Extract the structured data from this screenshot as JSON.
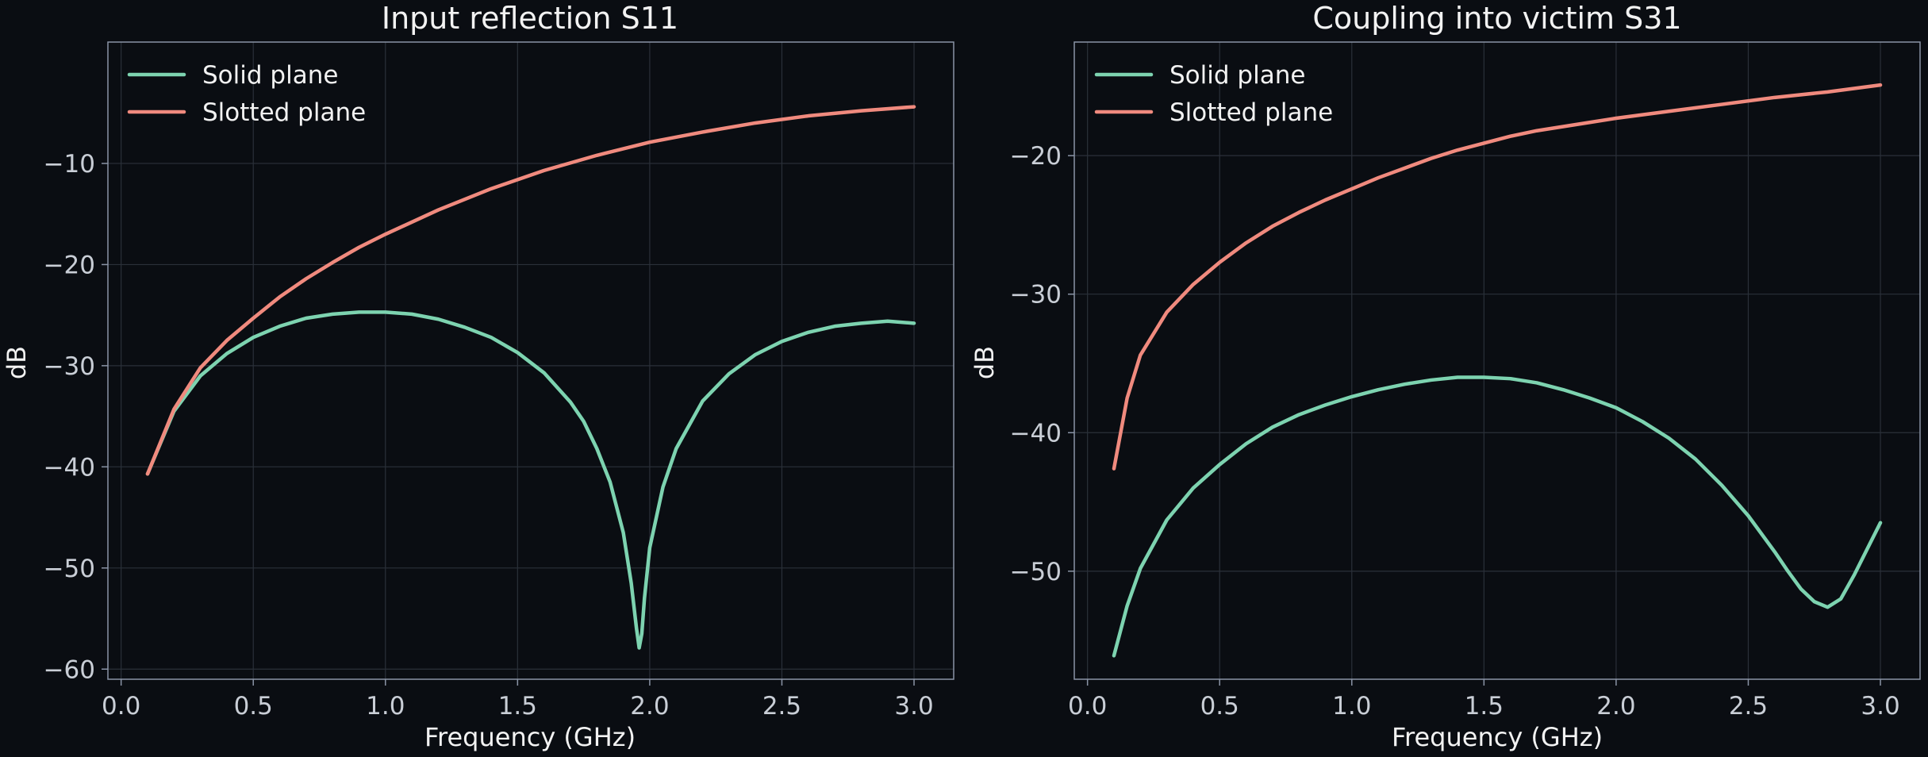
{
  "chart_data": [
    {
      "type": "line",
      "title": "Input reflection S11",
      "xlabel": "Frequency (GHz)",
      "ylabel": "dB",
      "xlim": [
        -0.05,
        3.15
      ],
      "ylim": [
        -61,
        2
      ],
      "xticks": [
        0.0,
        0.5,
        1.0,
        1.5,
        2.0,
        2.5,
        3.0
      ],
      "xtick_labels": [
        "0.0",
        "0.5",
        "1.0",
        "1.5",
        "2.0",
        "2.5",
        "3.0"
      ],
      "yticks": [
        -60,
        -50,
        -40,
        -30,
        -20,
        -10
      ],
      "ytick_labels": [
        "−60",
        "−50",
        "−40",
        "−30",
        "−20",
        "−10"
      ],
      "grid": true,
      "legend_position": "top-left",
      "series": [
        {
          "name": "Solid plane",
          "color": "#7dd3b0",
          "x": [
            0.1,
            0.2,
            0.3,
            0.4,
            0.5,
            0.6,
            0.7,
            0.8,
            0.9,
            1.0,
            1.1,
            1.2,
            1.3,
            1.4,
            1.5,
            1.6,
            1.7,
            1.75,
            1.8,
            1.85,
            1.9,
            1.93,
            1.95,
            1.96,
            1.97,
            1.98,
            2.0,
            2.05,
            2.1,
            2.2,
            2.3,
            2.4,
            2.5,
            2.6,
            2.7,
            2.8,
            2.9,
            3.0
          ],
          "y": [
            -40.7,
            -34.5,
            -31.0,
            -28.8,
            -27.2,
            -26.1,
            -25.3,
            -24.9,
            -24.7,
            -24.7,
            -24.9,
            -25.4,
            -26.2,
            -27.2,
            -28.7,
            -30.7,
            -33.6,
            -35.5,
            -38.2,
            -41.5,
            -46.5,
            -51.5,
            -56.0,
            -57.9,
            -56.5,
            -53.0,
            -48.0,
            -42.0,
            -38.2,
            -33.5,
            -30.8,
            -28.9,
            -27.6,
            -26.7,
            -26.1,
            -25.8,
            -25.6,
            -25.8
          ]
        },
        {
          "name": "Slotted plane",
          "color": "#f08a7e",
          "x": [
            0.1,
            0.2,
            0.3,
            0.4,
            0.5,
            0.6,
            0.7,
            0.8,
            0.9,
            1.0,
            1.2,
            1.4,
            1.6,
            1.8,
            2.0,
            2.2,
            2.4,
            2.6,
            2.8,
            3.0
          ],
          "y": [
            -40.7,
            -34.3,
            -30.2,
            -27.5,
            -25.3,
            -23.2,
            -21.4,
            -19.8,
            -18.3,
            -17.0,
            -14.6,
            -12.5,
            -10.7,
            -9.2,
            -7.9,
            -6.9,
            -6.0,
            -5.3,
            -4.8,
            -4.4
          ]
        }
      ]
    },
    {
      "type": "line",
      "title": "Coupling into victim S31",
      "xlabel": "Frequency (GHz)",
      "ylabel": "dB",
      "xlim": [
        -0.05,
        3.15
      ],
      "ylim": [
        -57.8,
        -11.8
      ],
      "xticks": [
        0.0,
        0.5,
        1.0,
        1.5,
        2.0,
        2.5,
        3.0
      ],
      "xtick_labels": [
        "0.0",
        "0.5",
        "1.0",
        "1.5",
        "2.0",
        "2.5",
        "3.0"
      ],
      "yticks": [
        -50,
        -40,
        -30,
        -20
      ],
      "ytick_labels": [
        "−50",
        "−40",
        "−30",
        "−20"
      ],
      "grid": true,
      "legend_position": "top-left",
      "series": [
        {
          "name": "Solid plane",
          "color": "#7dd3b0",
          "x": [
            0.1,
            0.15,
            0.2,
            0.3,
            0.4,
            0.5,
            0.6,
            0.7,
            0.8,
            0.9,
            1.0,
            1.1,
            1.2,
            1.3,
            1.4,
            1.5,
            1.6,
            1.7,
            1.8,
            1.9,
            2.0,
            2.1,
            2.2,
            2.3,
            2.4,
            2.5,
            2.6,
            2.65,
            2.7,
            2.75,
            2.8,
            2.85,
            2.9,
            2.95,
            3.0
          ],
          "y": [
            -56.1,
            -52.5,
            -49.8,
            -46.3,
            -44.0,
            -42.3,
            -40.8,
            -39.6,
            -38.7,
            -38.0,
            -37.4,
            -36.9,
            -36.5,
            -36.2,
            -36.0,
            -36.0,
            -36.1,
            -36.4,
            -36.9,
            -37.5,
            -38.2,
            -39.2,
            -40.4,
            -41.9,
            -43.8,
            -46.0,
            -48.6,
            -50.0,
            -51.3,
            -52.2,
            -52.6,
            -52.0,
            -50.3,
            -48.4,
            -46.5
          ]
        },
        {
          "name": "Slotted plane",
          "color": "#f08a7e",
          "x": [
            0.1,
            0.15,
            0.2,
            0.3,
            0.4,
            0.5,
            0.6,
            0.7,
            0.8,
            0.9,
            1.0,
            1.1,
            1.2,
            1.3,
            1.4,
            1.5,
            1.6,
            1.7,
            1.8,
            1.9,
            2.0,
            2.2,
            2.4,
            2.6,
            2.8,
            3.0
          ],
          "y": [
            -42.6,
            -37.5,
            -34.4,
            -31.3,
            -29.3,
            -27.7,
            -26.3,
            -25.1,
            -24.1,
            -23.2,
            -22.4,
            -21.6,
            -20.9,
            -20.2,
            -19.6,
            -19.1,
            -18.6,
            -18.2,
            -17.9,
            -17.6,
            -17.3,
            -16.8,
            -16.3,
            -15.8,
            -15.4,
            -14.9
          ]
        }
      ]
    }
  ]
}
